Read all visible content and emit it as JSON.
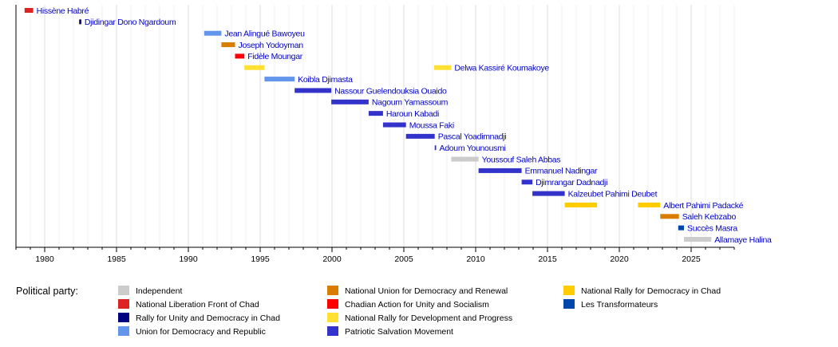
{
  "chart_data": {
    "type": "bar",
    "orientation": "horizontal-timeline",
    "xlim": [
      1978,
      2028
    ],
    "x_ticks": [
      1980,
      1985,
      1990,
      1995,
      2000,
      2005,
      2010,
      2015,
      2020,
      2025
    ],
    "grid": true,
    "legend_title": "Political party:",
    "legend": [
      {
        "key": "ind",
        "label": "Independent",
        "color": "#cccccc"
      },
      {
        "key": "flnc",
        "label": "National Liberation Front of Chad",
        "color": "#dd2222"
      },
      {
        "key": "rudc",
        "label": "Rally for Unity and Democracy in Chad",
        "color": "#000080"
      },
      {
        "key": "udr",
        "label": "Union for Democracy and Republic",
        "color": "#6495ed"
      },
      {
        "key": "undr",
        "label": "National Union for Democracy and Renewal",
        "color": "#d97d00"
      },
      {
        "key": "actus",
        "label": "Chadian Action for Unity and Socialism",
        "color": "#ff0000"
      },
      {
        "key": "rndp",
        "label": "National Rally for Development and Progress",
        "color": "#ffe033"
      },
      {
        "key": "mps",
        "label": "Patriotic Salvation Movement",
        "color": "#3333cc"
      },
      {
        "key": "rndt",
        "label": "National Rally for Democracy in Chad",
        "color": "#ffcc00"
      },
      {
        "key": "ltf",
        "label": "Les Transformateurs",
        "color": "#0047ab"
      }
    ],
    "series": [
      {
        "label": "Hissène Habré",
        "bars": [
          {
            "start": 1978.6,
            "end": 1979.2,
            "party": "flnc"
          }
        ]
      },
      {
        "label": "Djidingar Dono Ngardoum",
        "bars": [
          {
            "start": 1982.4,
            "end": 1982.55,
            "party": "rudc"
          }
        ]
      },
      {
        "label": "Jean Alingué Bawoyeu",
        "bars": [
          {
            "start": 1991.1,
            "end": 1992.3,
            "party": "udr"
          }
        ]
      },
      {
        "label": "Joseph Yodoyman",
        "bars": [
          {
            "start": 1992.3,
            "end": 1993.25,
            "party": "undr"
          }
        ]
      },
      {
        "label": "Fidèle Moungar",
        "bars": [
          {
            "start": 1993.25,
            "end": 1993.9,
            "party": "actus"
          }
        ]
      },
      {
        "label": "Delwa Kassiré Koumakoye",
        "bars": [
          {
            "start": 1993.9,
            "end": 1995.3,
            "party": "rndp"
          },
          {
            "start": 2007.1,
            "end": 2008.3,
            "party": "rndp"
          }
        ]
      },
      {
        "label": "Koibla Djimasta",
        "bars": [
          {
            "start": 1995.3,
            "end": 1997.4,
            "party": "udr"
          }
        ]
      },
      {
        "label": "Nassour Guelendouksia Ouaido",
        "bars": [
          {
            "start": 1997.4,
            "end": 1999.95,
            "party": "mps"
          }
        ]
      },
      {
        "label": "Nagoum Yamassoum",
        "bars": [
          {
            "start": 1999.95,
            "end": 2002.55,
            "party": "mps"
          }
        ]
      },
      {
        "label": "Haroun Kabadi",
        "bars": [
          {
            "start": 2002.55,
            "end": 2003.55,
            "party": "mps"
          }
        ]
      },
      {
        "label": "Moussa Faki",
        "bars": [
          {
            "start": 2003.55,
            "end": 2005.15,
            "party": "mps"
          }
        ]
      },
      {
        "label": "Pascal Yoadimnadji",
        "bars": [
          {
            "start": 2005.15,
            "end": 2007.15,
            "party": "mps"
          }
        ]
      },
      {
        "label": "Adoum Younousmi",
        "bars": [
          {
            "start": 2007.15,
            "end": 2007.25,
            "party": "mps"
          }
        ]
      },
      {
        "label": "Youssouf Saleh Abbas",
        "bars": [
          {
            "start": 2008.3,
            "end": 2010.2,
            "party": "ind"
          }
        ]
      },
      {
        "label": "Emmanuel Nadingar",
        "bars": [
          {
            "start": 2010.2,
            "end": 2013.2,
            "party": "mps"
          }
        ]
      },
      {
        "label": "Djimrangar Dadnadji",
        "bars": [
          {
            "start": 2013.2,
            "end": 2013.95,
            "party": "mps"
          }
        ]
      },
      {
        "label": "Kalzeubet Pahimi Deubet",
        "bars": [
          {
            "start": 2013.95,
            "end": 2016.2,
            "party": "mps"
          }
        ]
      },
      {
        "label": "Albert Pahimi Padacké",
        "bars": [
          {
            "start": 2016.2,
            "end": 2018.45,
            "party": "rndt"
          },
          {
            "start": 2021.3,
            "end": 2022.85,
            "party": "rndt"
          }
        ]
      },
      {
        "label": "Saleh Kebzabo",
        "bars": [
          {
            "start": 2022.85,
            "end": 2024.15,
            "party": "undr"
          }
        ]
      },
      {
        "label": "Succès Masra",
        "bars": [
          {
            "start": 2024.1,
            "end": 2024.5,
            "party": "ltf"
          }
        ]
      },
      {
        "label": "Allamaye Halina",
        "bars": [
          {
            "start": 2024.5,
            "end": 2026.4,
            "party": "ind"
          }
        ]
      }
    ]
  }
}
